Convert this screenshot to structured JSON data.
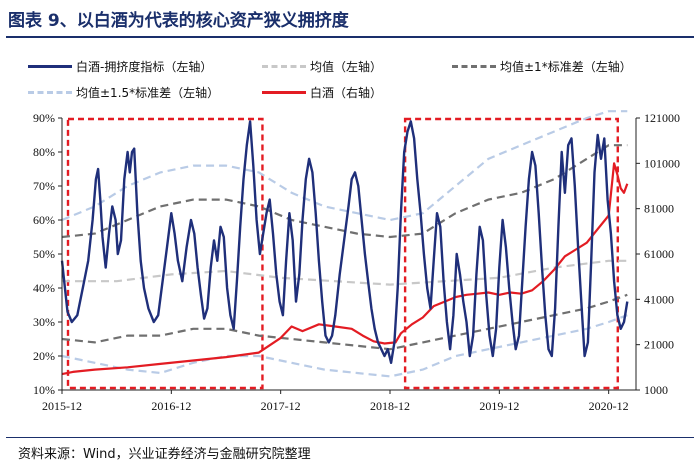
{
  "title": "图表 9、以白酒为代表的核心资产狭义拥挤度",
  "source": "资料来源：Wind，兴业证券经济与金融研究院整理",
  "chart_data": {
    "type": "line",
    "x_ticks": [
      "2015-12",
      "2016-12",
      "2017-12",
      "2018-12",
      "2019-12",
      "2020-12"
    ],
    "x_range": [
      "2015-12",
      "2021-03"
    ],
    "y_left": {
      "range": [
        10,
        90
      ],
      "ticks": [
        "10%",
        "20%",
        "30%",
        "40%",
        "50%",
        "60%",
        "70%",
        "80%",
        "90%"
      ]
    },
    "y_right": {
      "range": [
        1000,
        121000
      ],
      "ticks": [
        "1000",
        "21000",
        "41000",
        "61000",
        "81000",
        "101000",
        "121000"
      ]
    },
    "colors": {
      "crowding": "#1f2f7a",
      "mean": "#c8c8c8",
      "band1": "#707070",
      "band15": "#b9cbe6",
      "baijiu": "#e31c23",
      "highlight": "#e31c23"
    },
    "legend": [
      {
        "label": "白酒-拥挤度指标（左轴）",
        "series": "crowding",
        "style": "solid"
      },
      {
        "label": "均值（左轴）",
        "series": "mean",
        "style": "dash"
      },
      {
        "label": "均值±1*标准差（左轴）",
        "series": "band1",
        "style": "dash"
      },
      {
        "label": "均值±1.5*标准差（左轴）",
        "series": "band15",
        "style": "dash"
      },
      {
        "label": "白酒（右轴）",
        "series": "baijiu",
        "style": "solid"
      }
    ],
    "highlight_periods": [
      {
        "start": "2015-12",
        "end": "2017-10"
      },
      {
        "start": "2019-01",
        "end": "2021-01"
      }
    ],
    "series": {
      "crowding": {
        "axis": "left",
        "points": [
          [
            0,
            48
          ],
          [
            0.02,
            42
          ],
          [
            0.05,
            33
          ],
          [
            0.09,
            30
          ],
          [
            0.14,
            32
          ],
          [
            0.19,
            40
          ],
          [
            0.24,
            48
          ],
          [
            0.28,
            60
          ],
          [
            0.31,
            72
          ],
          [
            0.33,
            75
          ],
          [
            0.35,
            66
          ],
          [
            0.37,
            55
          ],
          [
            0.4,
            46
          ],
          [
            0.43,
            56
          ],
          [
            0.46,
            64
          ],
          [
            0.49,
            60
          ],
          [
            0.51,
            50
          ],
          [
            0.54,
            54
          ],
          [
            0.57,
            72
          ],
          [
            0.6,
            80
          ],
          [
            0.62,
            74
          ],
          [
            0.64,
            80
          ],
          [
            0.66,
            81
          ],
          [
            0.69,
            62
          ],
          [
            0.72,
            48
          ],
          [
            0.75,
            40
          ],
          [
            0.79,
            34
          ],
          [
            0.84,
            30
          ],
          [
            0.88,
            32
          ],
          [
            0.92,
            42
          ],
          [
            0.96,
            52
          ],
          [
            1.0,
            62
          ],
          [
            1.03,
            56
          ],
          [
            1.06,
            48
          ],
          [
            1.1,
            42
          ],
          [
            1.14,
            52
          ],
          [
            1.18,
            60
          ],
          [
            1.21,
            56
          ],
          [
            1.24,
            46
          ],
          [
            1.27,
            38
          ],
          [
            1.3,
            31
          ],
          [
            1.33,
            34
          ],
          [
            1.36,
            46
          ],
          [
            1.39,
            54
          ],
          [
            1.42,
            48
          ],
          [
            1.45,
            58
          ],
          [
            1.48,
            55
          ],
          [
            1.51,
            40
          ],
          [
            1.54,
            32
          ],
          [
            1.57,
            28
          ],
          [
            1.6,
            42
          ],
          [
            1.63,
            58
          ],
          [
            1.66,
            72
          ],
          [
            1.69,
            82
          ],
          [
            1.72,
            89
          ],
          [
            1.75,
            76
          ],
          [
            1.78,
            60
          ],
          [
            1.81,
            50
          ],
          [
            1.84,
            56
          ],
          [
            1.87,
            62
          ],
          [
            1.9,
            66
          ],
          [
            1.93,
            56
          ],
          [
            1.96,
            44
          ],
          [
            1.99,
            36
          ],
          [
            2.02,
            32
          ],
          [
            2.05,
            48
          ],
          [
            2.08,
            62
          ],
          [
            2.11,
            54
          ],
          [
            2.14,
            36
          ],
          [
            2.17,
            44
          ],
          [
            2.2,
            60
          ],
          [
            2.23,
            72
          ],
          [
            2.26,
            78
          ],
          [
            2.29,
            74
          ],
          [
            2.32,
            62
          ],
          [
            2.35,
            48
          ],
          [
            2.38,
            36
          ],
          [
            2.41,
            26
          ],
          [
            2.44,
            24
          ],
          [
            2.47,
            26
          ],
          [
            2.5,
            32
          ],
          [
            2.54,
            44
          ],
          [
            2.58,
            54
          ],
          [
            2.62,
            64
          ],
          [
            2.65,
            72
          ],
          [
            2.68,
            74
          ],
          [
            2.71,
            70
          ],
          [
            2.74,
            60
          ],
          [
            2.77,
            50
          ],
          [
            2.8,
            42
          ],
          [
            2.83,
            34
          ],
          [
            2.86,
            28
          ],
          [
            2.89,
            24
          ],
          [
            2.92,
            22
          ],
          [
            2.95,
            20
          ],
          [
            2.98,
            22
          ],
          [
            3.01,
            18
          ],
          [
            3.04,
            24
          ],
          [
            3.07,
            40
          ],
          [
            3.1,
            62
          ],
          [
            3.13,
            80
          ],
          [
            3.16,
            86
          ],
          [
            3.19,
            89
          ],
          [
            3.22,
            84
          ],
          [
            3.25,
            72
          ],
          [
            3.28,
            62
          ],
          [
            3.31,
            50
          ],
          [
            3.34,
            40
          ],
          [
            3.37,
            34
          ],
          [
            3.4,
            48
          ],
          [
            3.43,
            62
          ],
          [
            3.46,
            58
          ],
          [
            3.49,
            42
          ],
          [
            3.52,
            30
          ],
          [
            3.55,
            22
          ],
          [
            3.58,
            32
          ],
          [
            3.61,
            50
          ],
          [
            3.64,
            44
          ],
          [
            3.67,
            36
          ],
          [
            3.7,
            30
          ],
          [
            3.73,
            20
          ],
          [
            3.76,
            26
          ],
          [
            3.79,
            44
          ],
          [
            3.82,
            58
          ],
          [
            3.85,
            54
          ],
          [
            3.88,
            38
          ],
          [
            3.91,
            26
          ],
          [
            3.94,
            20
          ],
          [
            3.97,
            28
          ],
          [
            4.0,
            46
          ],
          [
            4.03,
            60
          ],
          [
            4.06,
            52
          ],
          [
            4.09,
            40
          ],
          [
            4.12,
            30
          ],
          [
            4.15,
            22
          ],
          [
            4.18,
            26
          ],
          [
            4.21,
            42
          ],
          [
            4.24,
            58
          ],
          [
            4.27,
            72
          ],
          [
            4.3,
            80
          ],
          [
            4.33,
            76
          ],
          [
            4.36,
            62
          ],
          [
            4.39,
            46
          ],
          [
            4.42,
            32
          ],
          [
            4.45,
            22
          ],
          [
            4.48,
            20
          ],
          [
            4.51,
            34
          ],
          [
            4.54,
            58
          ],
          [
            4.57,
            80
          ],
          [
            4.6,
            68
          ],
          [
            4.63,
            82
          ],
          [
            4.66,
            84
          ],
          [
            4.69,
            70
          ],
          [
            4.72,
            52
          ],
          [
            4.75,
            36
          ],
          [
            4.78,
            20
          ],
          [
            4.81,
            24
          ],
          [
            4.84,
            48
          ],
          [
            4.87,
            74
          ],
          [
            4.9,
            85
          ],
          [
            4.93,
            78
          ],
          [
            4.96,
            84
          ],
          [
            4.99,
            66
          ],
          [
            5.02,
            56
          ],
          [
            5.05,
            42
          ],
          [
            5.08,
            32
          ],
          [
            5.11,
            28
          ],
          [
            5.14,
            30
          ],
          [
            5.17,
            36
          ]
        ]
      },
      "mean": {
        "axis": "left",
        "points": [
          [
            0,
            42
          ],
          [
            0.5,
            42
          ],
          [
            1.0,
            44
          ],
          [
            1.5,
            45
          ],
          [
            2.0,
            43
          ],
          [
            2.5,
            42
          ],
          [
            3.0,
            41
          ],
          [
            3.5,
            42
          ],
          [
            4.0,
            43
          ],
          [
            4.5,
            46
          ],
          [
            5.0,
            48
          ],
          [
            5.17,
            48
          ]
        ]
      },
      "band1_upper": {
        "axis": "left",
        "points": [
          [
            0,
            55
          ],
          [
            0.3,
            56
          ],
          [
            0.6,
            60
          ],
          [
            0.9,
            64
          ],
          [
            1.2,
            66
          ],
          [
            1.5,
            66
          ],
          [
            1.8,
            64
          ],
          [
            2.1,
            60
          ],
          [
            2.4,
            58
          ],
          [
            2.7,
            56
          ],
          [
            3.0,
            55
          ],
          [
            3.3,
            56
          ],
          [
            3.6,
            62
          ],
          [
            3.9,
            66
          ],
          [
            4.2,
            68
          ],
          [
            4.5,
            72
          ],
          [
            4.8,
            78
          ],
          [
            5.0,
            82
          ],
          [
            5.17,
            82
          ]
        ]
      },
      "band1_lower": {
        "axis": "left",
        "points": [
          [
            0,
            25
          ],
          [
            0.3,
            24
          ],
          [
            0.6,
            26
          ],
          [
            0.9,
            26
          ],
          [
            1.2,
            28
          ],
          [
            1.5,
            28
          ],
          [
            1.8,
            26
          ],
          [
            2.1,
            25
          ],
          [
            2.4,
            24
          ],
          [
            2.7,
            23
          ],
          [
            3.0,
            22
          ],
          [
            3.3,
            24
          ],
          [
            3.6,
            26
          ],
          [
            3.9,
            28
          ],
          [
            4.2,
            30
          ],
          [
            4.5,
            32
          ],
          [
            4.8,
            34
          ],
          [
            5.0,
            36
          ],
          [
            5.17,
            38
          ]
        ]
      },
      "band15_upper": {
        "axis": "left",
        "points": [
          [
            0,
            60
          ],
          [
            0.3,
            64
          ],
          [
            0.6,
            70
          ],
          [
            0.9,
            74
          ],
          [
            1.2,
            76
          ],
          [
            1.5,
            76
          ],
          [
            1.8,
            74
          ],
          [
            2.1,
            68
          ],
          [
            2.4,
            64
          ],
          [
            2.7,
            62
          ],
          [
            3.0,
            60
          ],
          [
            3.3,
            62
          ],
          [
            3.6,
            70
          ],
          [
            3.9,
            78
          ],
          [
            4.2,
            82
          ],
          [
            4.5,
            86
          ],
          [
            4.8,
            90
          ],
          [
            5.0,
            92
          ],
          [
            5.17,
            92
          ]
        ]
      },
      "band15_lower": {
        "axis": "left",
        "points": [
          [
            0,
            20
          ],
          [
            0.3,
            18
          ],
          [
            0.6,
            16
          ],
          [
            0.9,
            15
          ],
          [
            1.2,
            18
          ],
          [
            1.5,
            20
          ],
          [
            1.8,
            20
          ],
          [
            2.1,
            18
          ],
          [
            2.4,
            16
          ],
          [
            2.7,
            15
          ],
          [
            3.0,
            14
          ],
          [
            3.3,
            16
          ],
          [
            3.6,
            20
          ],
          [
            3.9,
            22
          ],
          [
            4.2,
            24
          ],
          [
            4.5,
            26
          ],
          [
            4.8,
            28
          ],
          [
            5.0,
            30
          ],
          [
            5.17,
            32
          ]
        ]
      },
      "baijiu": {
        "axis": "right",
        "points": [
          [
            0,
            8000
          ],
          [
            0.1,
            9000
          ],
          [
            0.3,
            10000
          ],
          [
            0.6,
            11000
          ],
          [
            0.9,
            12500
          ],
          [
            1.2,
            14000
          ],
          [
            1.5,
            15500
          ],
          [
            1.8,
            17500
          ],
          [
            2.0,
            24000
          ],
          [
            2.1,
            29000
          ],
          [
            2.2,
            27000
          ],
          [
            2.35,
            30000
          ],
          [
            2.5,
            29000
          ],
          [
            2.65,
            28000
          ],
          [
            2.75,
            25000
          ],
          [
            2.85,
            22500
          ],
          [
            2.95,
            21500
          ],
          [
            3.05,
            22000
          ],
          [
            3.1,
            26000
          ],
          [
            3.2,
            30000
          ],
          [
            3.3,
            33000
          ],
          [
            3.4,
            38000
          ],
          [
            3.5,
            40000
          ],
          [
            3.6,
            42000
          ],
          [
            3.7,
            43000
          ],
          [
            3.8,
            43500
          ],
          [
            3.9,
            44000
          ],
          [
            4.0,
            43000
          ],
          [
            4.1,
            44000
          ],
          [
            4.2,
            43500
          ],
          [
            4.3,
            45000
          ],
          [
            4.4,
            49000
          ],
          [
            4.5,
            54000
          ],
          [
            4.6,
            60000
          ],
          [
            4.7,
            63000
          ],
          [
            4.8,
            66000
          ],
          [
            4.9,
            72000
          ],
          [
            5.0,
            78000
          ],
          [
            5.05,
            101000
          ],
          [
            5.08,
            96000
          ],
          [
            5.11,
            90000
          ],
          [
            5.14,
            88000
          ],
          [
            5.17,
            92000
          ]
        ]
      }
    }
  }
}
